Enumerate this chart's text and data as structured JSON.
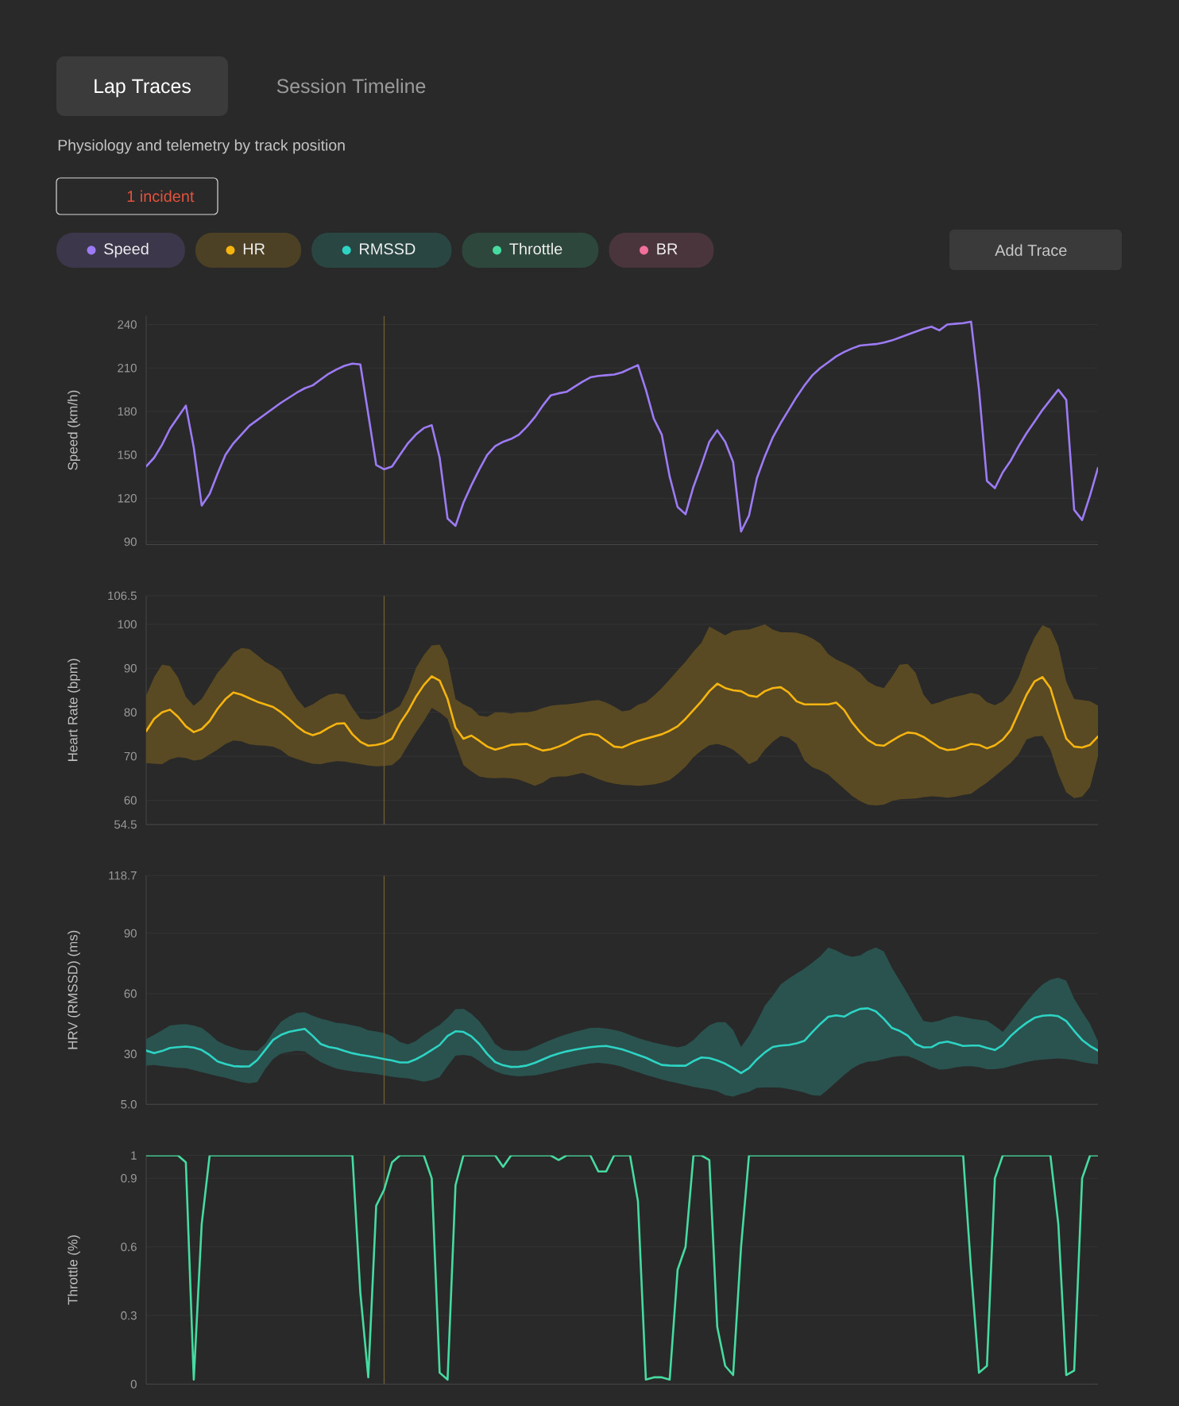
{
  "chart_data": [
    {
      "type": "other",
      "title": "Lap Traces",
      "subtitle": "Physiology and telemetry by track position",
      "annotations": [
        "Session Timeline",
        "1 incident",
        "Add Trace"
      ],
      "categories": [
        "Speed",
        "HR",
        "RMSSD",
        "Throttle",
        "BR"
      ],
      "colors": [
        "#9d7bf5",
        "#f5b40f",
        "#2dd4c4",
        "#46dba0",
        "#f2709c"
      ]
    },
    {
      "type": "line",
      "ylabel": "Speed (km/h)",
      "ylim": [
        88,
        246
      ],
      "yticks": [
        90,
        120,
        150,
        180,
        210,
        240
      ],
      "grid": "y",
      "categories": [
        null,
        null,
        null,
        null,
        null,
        null,
        null,
        null,
        null,
        null,
        null,
        null,
        null,
        null,
        null,
        null,
        null,
        null,
        null,
        null,
        null,
        null,
        null,
        null,
        null,
        null,
        null,
        null,
        null,
        null,
        null,
        null,
        null,
        null,
        null,
        null,
        null,
        null,
        null,
        null,
        null,
        null,
        null,
        null,
        null,
        null,
        null,
        null,
        null,
        null,
        null,
        null,
        null,
        null,
        null,
        null,
        null,
        null,
        null,
        null,
        null,
        null,
        null,
        null,
        null,
        null,
        null,
        null,
        null,
        null,
        null,
        null,
        null,
        null,
        null,
        null,
        null,
        null,
        null,
        null,
        null,
        null,
        null,
        null,
        null,
        null,
        null,
        null,
        null,
        null,
        null,
        null,
        null,
        null,
        null,
        null,
        null,
        null,
        null,
        null,
        null,
        null,
        null,
        null,
        null,
        null,
        null,
        null,
        null,
        null,
        null,
        null,
        null,
        null,
        null,
        null,
        null,
        null,
        null,
        null,
        null
      ],
      "series": [
        {
          "color": "#9d7bf5",
          "values": [
            142,
            148,
            157,
            168,
            176,
            184,
            155,
            115,
            123,
            137,
            150,
            158,
            164,
            170,
            174,
            178,
            182,
            186,
            189.5,
            193,
            196,
            198,
            202,
            206,
            209,
            211.5,
            213,
            212.5,
            178,
            143,
            140,
            142,
            150,
            158,
            164,
            168.5,
            170.5,
            148,
            106,
            101,
            117,
            129,
            140,
            150,
            156,
            159,
            161,
            164,
            169.5,
            176,
            184,
            191,
            192.5,
            193.5,
            197,
            200.5,
            203.5,
            204.5,
            205,
            205.5,
            207,
            209.5,
            212,
            195,
            175,
            164,
            135,
            114,
            109,
            128,
            143,
            159,
            167,
            159,
            145,
            97,
            108,
            134,
            149,
            162,
            172,
            181,
            190,
            198,
            205,
            210,
            214,
            218,
            221,
            223.5,
            225.5,
            226,
            226.5,
            227.5,
            229,
            231,
            233,
            235,
            237,
            238.5,
            236,
            240,
            240.5,
            241,
            242,
            195,
            132,
            127,
            138,
            146,
            156,
            165,
            173,
            181,
            188,
            195,
            188,
            112,
            105,
            122,
            141
          ]
        }
      ]
    },
    {
      "type": "line",
      "ylabel": "Heart Rate (bpm)",
      "ylim": [
        54.5,
        106.5
      ],
      "yticks": [
        54.5,
        60,
        70,
        80,
        90,
        100,
        106.5
      ],
      "grid": "y",
      "categories": [
        null,
        null,
        null,
        null,
        null,
        null,
        null,
        null,
        null,
        null,
        null,
        null,
        null,
        null,
        null,
        null,
        null,
        null,
        null,
        null,
        null,
        null,
        null,
        null,
        null,
        null,
        null,
        null,
        null,
        null,
        null,
        null,
        null,
        null,
        null,
        null,
        null,
        null,
        null,
        null,
        null,
        null,
        null,
        null,
        null,
        null,
        null,
        null,
        null,
        null,
        null,
        null,
        null,
        null,
        null,
        null,
        null,
        null,
        null,
        null,
        null,
        null,
        null,
        null,
        null,
        null,
        null,
        null,
        null,
        null,
        null,
        null,
        null,
        null,
        null,
        null,
        null,
        null,
        null,
        null,
        null,
        null,
        null,
        null,
        null,
        null,
        null,
        null,
        null,
        null,
        null,
        null,
        null,
        null,
        null,
        null,
        null,
        null,
        null,
        null,
        null,
        null,
        null,
        null,
        null,
        null,
        null,
        null,
        null,
        null,
        null,
        null,
        null,
        null,
        null,
        null,
        null,
        null,
        null,
        null,
        null
      ],
      "series": [
        {
          "color": "#f5b40f",
          "values": [
            75.7,
            78.5,
            80,
            80.6,
            79,
            76.8,
            75.5,
            76.2,
            78,
            80.8,
            83,
            84.5,
            84,
            83.2,
            82.4,
            81.8,
            81.2,
            80,
            78.5,
            76.8,
            75.5,
            74.8,
            75.4,
            76.5,
            77.4,
            77.5,
            75,
            73.3,
            72.4,
            72.6,
            73,
            74,
            77.5,
            80.2,
            83.5,
            86.2,
            88.2,
            87.2,
            83,
            76.5,
            74,
            74.7,
            73.5,
            72.2,
            71.5,
            72,
            72.6,
            72.7,
            72.8,
            72,
            71.3,
            71.6,
            72.2,
            73,
            74,
            74.8,
            75.1,
            74.8,
            73.5,
            72.2,
            72,
            72.8,
            73.5,
            74,
            74.5,
            75,
            75.8,
            76.8,
            78.5,
            80.5,
            82.5,
            84.8,
            86.5,
            85.5,
            85,
            84.8,
            83.8,
            83.5,
            84.8,
            85.5,
            85.7,
            84.5,
            82.5,
            81.8,
            81.8,
            81.8,
            81.8,
            82.2,
            80.5,
            77.7,
            75.5,
            73.7,
            72.6,
            72.4,
            73.5,
            74.6,
            75.4,
            75.2,
            74.4,
            73.2,
            72,
            71.4,
            71.6,
            72.2,
            72.8,
            72.6,
            71.8,
            72.5,
            73.8,
            76,
            80,
            84,
            87,
            88,
            85.5,
            79.5,
            74,
            72.2,
            72,
            72.6,
            74.5
          ],
          "lower": [
            68.5,
            68.3,
            68.2,
            69.3,
            69.8,
            69.6,
            69,
            69.3,
            70.4,
            71.5,
            72.8,
            73.6,
            73.4,
            72.7,
            72.5,
            72.4,
            72.2,
            71.4,
            70,
            69.4,
            68.8,
            68.3,
            68.2,
            68.6,
            68.9,
            68.8,
            68.5,
            68.2,
            67.9,
            67.7,
            67.8,
            68,
            69.5,
            72.5,
            75.4,
            78,
            81,
            80,
            78.5,
            73,
            68,
            66.6,
            65.4,
            65.1,
            65,
            65.1,
            65,
            64.7,
            64,
            63.3,
            64,
            65.2,
            65.4,
            65.4,
            65.8,
            66.2,
            65.6,
            64.8,
            64.2,
            63.8,
            63.5,
            63.4,
            63.3,
            63.4,
            63.6,
            64,
            64.6,
            66,
            67.6,
            69.8,
            71.3,
            72.5,
            72.8,
            72.3,
            71.5,
            70,
            68.2,
            69,
            71.5,
            73.3,
            74.6,
            74.2,
            72.8,
            69,
            67.5,
            66.8,
            65.8,
            64.2,
            62.6,
            61,
            59.8,
            59,
            58.8,
            59,
            59.8,
            60.2,
            60.3,
            60.4,
            60.7,
            60.9,
            60.8,
            60.6,
            60.8,
            61.2,
            61.5,
            62.8,
            64,
            65.5,
            67,
            68.5,
            70.5,
            73.8,
            74.5,
            74.6,
            71.5,
            66,
            61.8,
            60.5,
            60.8,
            63,
            70
          ],
          "upper": [
            83.8,
            88,
            90.8,
            90.5,
            88,
            83.5,
            81.5,
            83,
            86,
            89,
            91,
            93.5,
            94.6,
            94.4,
            93,
            91.5,
            90.5,
            89.3,
            86,
            83,
            81,
            81.8,
            83,
            84,
            84.3,
            84,
            81,
            78.5,
            78.3,
            78.6,
            79.5,
            80.3,
            81.5,
            85,
            90,
            93,
            95.2,
            95.4,
            92,
            83,
            81.8,
            81,
            79.2,
            79,
            80,
            80,
            79.7,
            80,
            80,
            80.3,
            81,
            81.5,
            81.7,
            81.8,
            82,
            82.3,
            82.6,
            82.8,
            82.2,
            81.3,
            80.2,
            80.5,
            81.7,
            82.3,
            83.8,
            85.5,
            87.5,
            89.5,
            91.5,
            93.8,
            95.8,
            99.5,
            98.5,
            97.5,
            98.5,
            98.7,
            98.8,
            99.4,
            100,
            98.8,
            98.2,
            98.2,
            98.1,
            97.6,
            96.8,
            95.6,
            93.2,
            92,
            91.2,
            90.3,
            89,
            87,
            86,
            85.5,
            88,
            90.8,
            91,
            89,
            84,
            81.8,
            82.3,
            83,
            83.5,
            83.9,
            84.4,
            84,
            82.3,
            81.6,
            82.5,
            84.5,
            88,
            93,
            97,
            99.8,
            99,
            95,
            87,
            83,
            82.8,
            82.5,
            81.5
          ]
        }
      ]
    },
    {
      "type": "line",
      "ylabel": "HRV (RMSSD) (ms)",
      "ylim": [
        5,
        118.7
      ],
      "yticks": [
        {
          "value": 5,
          "label": "5.0"
        },
        30,
        60,
        90,
        118.7
      ],
      "grid": "y",
      "categories": [
        null,
        null,
        null,
        null,
        null,
        null,
        null,
        null,
        null,
        null,
        null,
        null,
        null,
        null,
        null,
        null,
        null,
        null,
        null,
        null,
        null,
        null,
        null,
        null,
        null,
        null,
        null,
        null,
        null,
        null,
        null,
        null,
        null,
        null,
        null,
        null,
        null,
        null,
        null,
        null,
        null,
        null,
        null,
        null,
        null,
        null,
        null,
        null,
        null,
        null,
        null,
        null,
        null,
        null,
        null,
        null,
        null,
        null,
        null,
        null,
        null,
        null,
        null,
        null,
        null,
        null,
        null,
        null,
        null,
        null,
        null,
        null,
        null,
        null,
        null,
        null,
        null,
        null,
        null,
        null,
        null,
        null,
        null,
        null,
        null,
        null,
        null,
        null,
        null,
        null,
        null,
        null,
        null,
        null,
        null,
        null,
        null,
        null,
        null,
        null,
        null,
        null,
        null,
        null,
        null,
        null,
        null,
        null,
        null,
        null,
        null,
        null,
        null,
        null,
        null,
        null,
        null,
        null,
        null,
        null,
        null
      ],
      "series": [
        {
          "color": "#2dd4c4",
          "values": [
            31.7,
            30.5,
            31.5,
            33,
            33.4,
            33.7,
            33.2,
            32,
            29.5,
            26.3,
            25,
            24,
            23.8,
            23.9,
            27,
            32,
            37,
            39.5,
            41,
            41.8,
            42.5,
            39,
            35,
            33.5,
            32.8,
            31.5,
            30.4,
            29.6,
            29,
            28.3,
            27.5,
            26.8,
            25.8,
            25.8,
            27.4,
            29.5,
            32,
            34.5,
            39,
            41.3,
            41,
            38.8,
            35,
            30,
            26,
            24.4,
            23.6,
            23.7,
            24.3,
            25.6,
            27.3,
            29,
            30.3,
            31.3,
            32.1,
            32.8,
            33.4,
            33.8,
            34,
            33.2,
            32.3,
            31,
            29.6,
            28.2,
            26.3,
            24.6,
            24.3,
            24.2,
            24.2,
            26.5,
            28.3,
            28,
            26.8,
            25.2,
            23,
            20.5,
            23,
            27.3,
            30.8,
            33.5,
            34.2,
            34.5,
            35.3,
            36.6,
            41,
            45,
            48.5,
            49.2,
            48.6,
            50.8,
            52.4,
            52.7,
            51.2,
            47.5,
            43,
            41.5,
            39.2,
            35,
            33.3,
            33.4,
            35.5,
            36.2,
            35.2,
            34,
            34.2,
            34.2,
            33,
            32,
            34.5,
            39,
            42.5,
            45.5,
            48,
            49,
            49.3,
            48.8,
            46.4,
            41.5,
            37,
            34,
            31.7
          ],
          "lower": [
            24.2,
            24.5,
            24,
            23.5,
            23.2,
            23,
            22,
            21,
            20,
            19,
            18.2,
            17,
            16,
            15.5,
            16,
            22.5,
            27.5,
            30.3,
            31,
            31.6,
            31.2,
            28.5,
            26,
            24.2,
            22.8,
            22,
            21.4,
            20.9,
            20.5,
            20,
            19.4,
            18.7,
            18.2,
            17.9,
            17,
            16.2,
            17,
            18.5,
            24,
            29.2,
            29.6,
            29,
            26.5,
            23.5,
            21.5,
            20,
            19.3,
            18.9,
            19.2,
            19.4,
            20.2,
            21.1,
            22.1,
            23,
            23.8,
            24.6,
            25.3,
            25.6,
            25.2,
            24.6,
            23.6,
            22.2,
            21,
            19.6,
            18.5,
            17.3,
            16.3,
            15.6,
            14.6,
            13.7,
            13,
            12.4,
            11.5,
            9.5,
            8.8,
            10.2,
            11.2,
            13.2,
            13.4,
            13.4,
            13.3,
            12.6,
            11.8,
            10.8,
            9.5,
            9.2,
            12.5,
            16,
            19.6,
            22.8,
            24.9,
            26.2,
            26.5,
            27.5,
            28.5,
            29,
            29,
            27.5,
            25.6,
            23.6,
            22.3,
            22.5,
            23.3,
            23.8,
            23.9,
            23.4,
            22.5,
            22.5,
            23,
            24,
            25,
            26,
            26.8,
            27.2,
            27.5,
            27.8,
            27.5,
            27,
            26,
            25.3,
            24.9
          ],
          "upper": [
            37.5,
            39.5,
            41.8,
            44.2,
            44.7,
            44.9,
            44.2,
            43,
            40,
            36.5,
            34.5,
            33.2,
            32,
            31.8,
            31.5,
            35,
            41,
            46,
            48.6,
            50.5,
            50.8,
            49,
            47.6,
            46.6,
            45.5,
            45.2,
            44.3,
            43.5,
            41.8,
            41.2,
            40.4,
            38.8,
            36,
            34.8,
            36.5,
            39.5,
            42,
            44.5,
            48,
            52.3,
            52.5,
            50,
            46.2,
            41,
            35,
            32.2,
            31.6,
            31.6,
            31.8,
            33.5,
            35.3,
            37,
            38.5,
            39.8,
            41,
            42,
            43,
            43.1,
            42.7,
            42,
            41,
            39.4,
            38,
            36.8,
            35.7,
            34.8,
            34,
            33.3,
            34.2,
            37,
            41,
            44.3,
            45.9,
            45.9,
            42,
            33.5,
            39,
            46,
            54,
            59,
            64.6,
            67.5,
            70,
            72.5,
            75.5,
            78.6,
            83,
            81.5,
            79.4,
            78.3,
            79,
            81.4,
            83,
            81,
            73,
            66.5,
            60,
            53,
            46.4,
            45.8,
            46.5,
            48,
            49,
            48.4,
            47.6,
            47,
            46.5,
            44,
            41,
            45.9,
            51,
            56,
            60.7,
            64.6,
            67,
            68,
            66.5,
            57.5,
            51,
            45,
            36.4
          ]
        }
      ]
    },
    {
      "type": "line",
      "ylabel": "Throttle (%)",
      "ylim": [
        0,
        1
      ],
      "yticks": [
        0,
        0.3,
        0.6,
        0.9,
        1
      ],
      "grid": "y",
      "categories": [
        null,
        null,
        null,
        null,
        null,
        null,
        null,
        null,
        null,
        null,
        null,
        null,
        null,
        null,
        null,
        null,
        null,
        null,
        null,
        null,
        null,
        null,
        null,
        null,
        null,
        null,
        null,
        null,
        null,
        null,
        null,
        null,
        null,
        null,
        null,
        null,
        null,
        null,
        null,
        null,
        null,
        null,
        null,
        null,
        null,
        null,
        null,
        null,
        null,
        null,
        null,
        null,
        null,
        null,
        null,
        null,
        null,
        null,
        null,
        null,
        null,
        null,
        null,
        null,
        null,
        null,
        null,
        null,
        null,
        null,
        null,
        null,
        null,
        null,
        null,
        null,
        null,
        null,
        null,
        null,
        null,
        null,
        null,
        null,
        null,
        null,
        null,
        null,
        null,
        null,
        null,
        null,
        null,
        null,
        null,
        null,
        null,
        null,
        null,
        null,
        null,
        null,
        null,
        null,
        null,
        null,
        null,
        null,
        null,
        null,
        null,
        null,
        null,
        null,
        null,
        null,
        null,
        null,
        null,
        null,
        null
      ],
      "series": [
        {
          "color": "#46dba0",
          "values": [
            1,
            1,
            1,
            1,
            1,
            0.97,
            0.02,
            0.7,
            1,
            1,
            1,
            1,
            1,
            1,
            1,
            1,
            1,
            1,
            1,
            1,
            1,
            1,
            1,
            1,
            1,
            1,
            1,
            0.4,
            0.03,
            0.78,
            0.85,
            0.97,
            1,
            1,
            1,
            1,
            0.9,
            0.05,
            0.02,
            0.87,
            1,
            1,
            1,
            1,
            1,
            0.95,
            1,
            1,
            1,
            1,
            1,
            1,
            0.98,
            1,
            1,
            1,
            1,
            0.93,
            0.93,
            1,
            1,
            1,
            0.8,
            0.02,
            0.03,
            0.03,
            0.02,
            0.5,
            0.6,
            1,
            1,
            0.98,
            0.25,
            0.08,
            0.04,
            0.6,
            1,
            1,
            1,
            1,
            1,
            1,
            1,
            1,
            1,
            1,
            1,
            1,
            1,
            1,
            1,
            1,
            1,
            1,
            1,
            1,
            1,
            1,
            1,
            1,
            1,
            1,
            1,
            1,
            0.5,
            0.05,
            0.08,
            0.9,
            1,
            1,
            1,
            1,
            1,
            1,
            1,
            0.7,
            0.04,
            0.06,
            0.9,
            1,
            1
          ]
        }
      ]
    }
  ]
}
